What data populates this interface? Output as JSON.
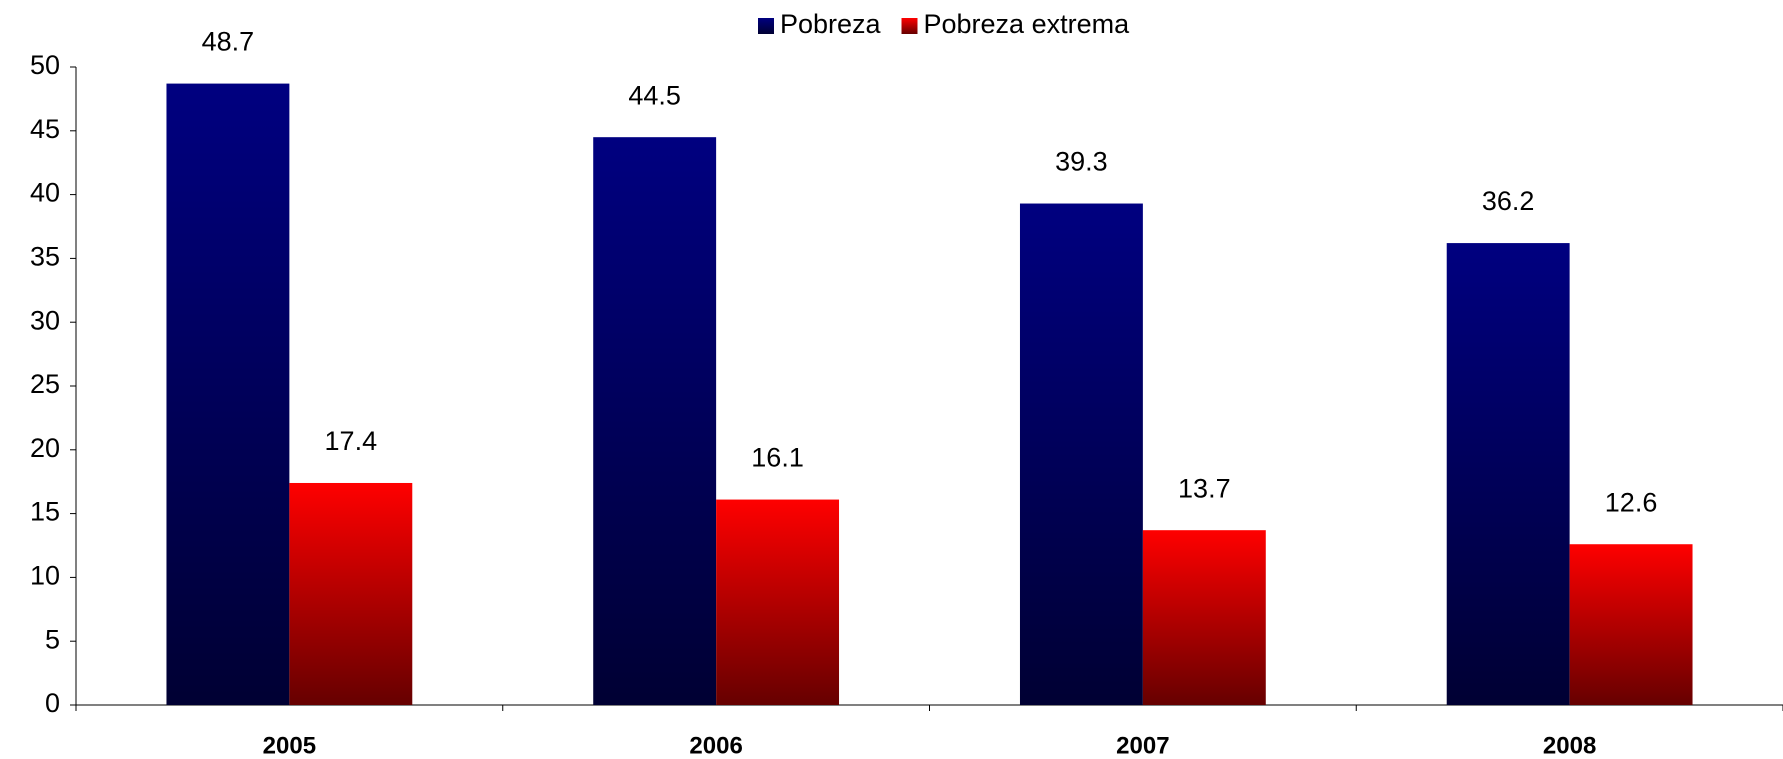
{
  "chart_data": {
    "type": "bar",
    "categories": [
      "2005",
      "2006",
      "2007",
      "2008"
    ],
    "series": [
      {
        "name": "Pobreza",
        "color": "#000080",
        "values": [
          48.7,
          44.5,
          39.3,
          36.2
        ]
      },
      {
        "name": "Pobreza extrema",
        "color": "#ff0000",
        "values": [
          17.4,
          16.1,
          13.7,
          12.6
        ]
      }
    ],
    "ylim": [
      0,
      50
    ],
    "yticks": [
      0,
      5,
      10,
      15,
      20,
      25,
      30,
      35,
      40,
      45,
      50
    ],
    "legend": "top"
  }
}
